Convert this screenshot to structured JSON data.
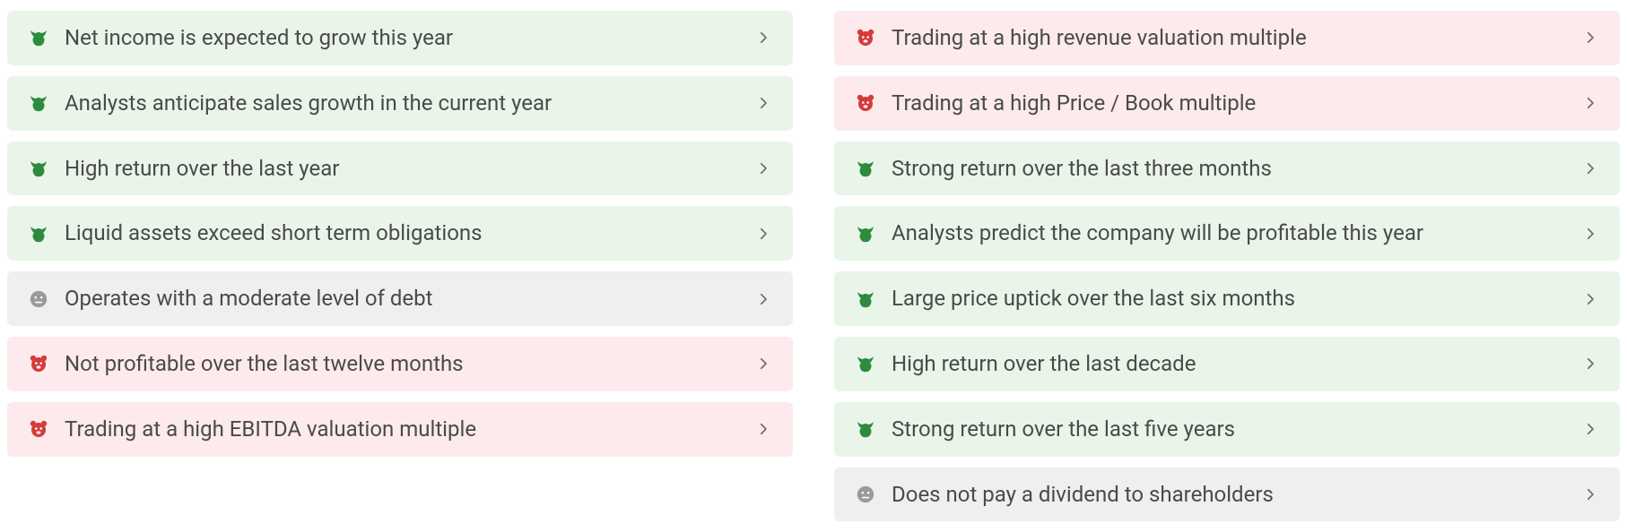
{
  "colors": {
    "bull_bg": "#eaf5ea",
    "bear_bg": "#fceaec",
    "neutral_bg": "#efefef",
    "bull_icon": "#2e8b3d",
    "bear_icon": "#d63b3b",
    "neutral_icon": "#9a9a9a",
    "text": "#4a4a4a",
    "chevron": "#6d6d6d"
  },
  "left": [
    {
      "type": "bull",
      "label": "Net income is expected to grow this year"
    },
    {
      "type": "bull",
      "label": "Analysts anticipate sales growth in the current year"
    },
    {
      "type": "bull",
      "label": "High return over the last year"
    },
    {
      "type": "bull",
      "label": "Liquid assets exceed short term obligations"
    },
    {
      "type": "neutral",
      "label": "Operates with a moderate level of debt"
    },
    {
      "type": "bear",
      "label": "Not profitable over the last twelve months"
    },
    {
      "type": "bear",
      "label": "Trading at a high EBITDA valuation multiple"
    }
  ],
  "right": [
    {
      "type": "bear",
      "label": "Trading at a high revenue valuation multiple"
    },
    {
      "type": "bear",
      "label": "Trading at a high Price / Book multiple"
    },
    {
      "type": "bull",
      "label": "Strong return over the last three months"
    },
    {
      "type": "bull",
      "label": "Analysts predict the company will be profitable this year"
    },
    {
      "type": "bull",
      "label": "Large price uptick over the last six months"
    },
    {
      "type": "bull",
      "label": "High return over the last decade"
    },
    {
      "type": "bull",
      "label": "Strong return over the last five years"
    },
    {
      "type": "neutral",
      "label": "Does not pay a dividend to shareholders"
    }
  ]
}
